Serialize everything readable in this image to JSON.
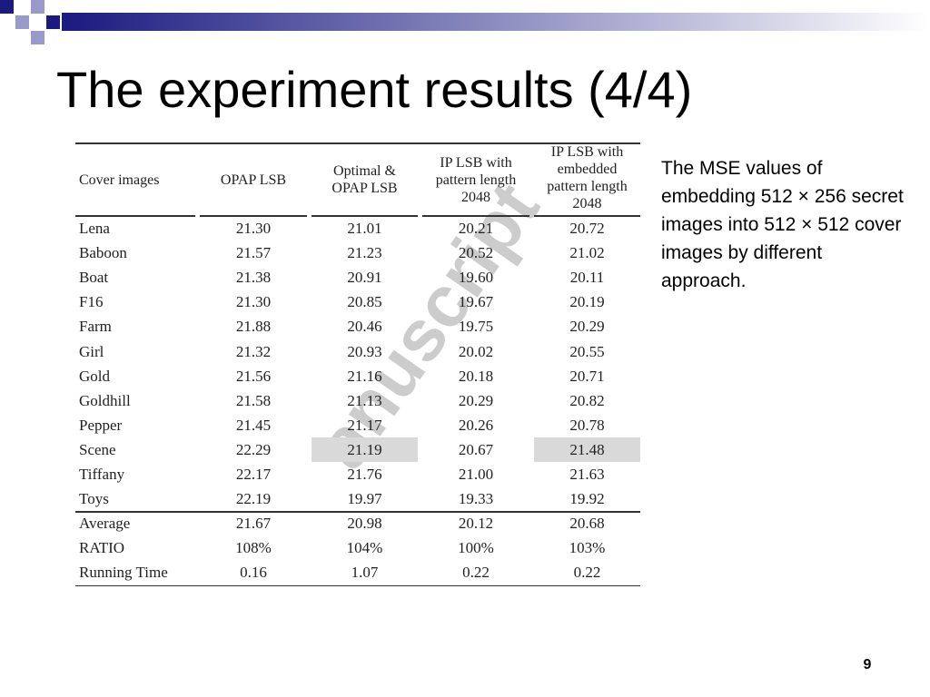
{
  "slide": {
    "title": "The experiment results (4/4)",
    "description": "The MSE values of embedding 512 × 256 secret images into 512 × 512 cover images by different approach.",
    "page_number": "9",
    "watermark": "anuscript"
  },
  "table": {
    "header": [
      [
        "Cover images"
      ],
      [
        "OPAP LSB"
      ],
      [
        "Optimal &",
        "OPAP LSB"
      ],
      [
        "IP LSB with",
        "pattern length",
        "2048"
      ],
      [
        "IP LSB with",
        "embedded",
        "pattern length",
        "2048"
      ]
    ],
    "rows": [
      [
        "Lena",
        "21.30",
        "21.01",
        "20.21",
        "20.72"
      ],
      [
        "Baboon",
        "21.57",
        "21.23",
        "20.52",
        "21.02"
      ],
      [
        "Boat",
        "21.38",
        "20.91",
        "19.60",
        "20.11"
      ],
      [
        "F16",
        "21.30",
        "20.85",
        "19.67",
        "20.19"
      ],
      [
        "Farm",
        "21.88",
        "20.46",
        "19.75",
        "20.29"
      ],
      [
        "Girl",
        "21.32",
        "20.93",
        "20.02",
        "20.55"
      ],
      [
        "Gold",
        "21.56",
        "21.16",
        "20.18",
        "20.71"
      ],
      [
        "Goldhill",
        "21.58",
        "21.13",
        "20.29",
        "20.82"
      ],
      [
        "Pepper",
        "21.45",
        "21.17",
        "20.26",
        "20.78"
      ],
      [
        "Scene",
        "22.29",
        "21.19",
        "20.67",
        "21.48"
      ],
      [
        "Tiffany",
        "22.17",
        "21.76",
        "21.00",
        "21.63"
      ],
      [
        "Toys",
        "22.19",
        "19.97",
        "19.33",
        "19.92"
      ],
      [
        "Average",
        "21.67",
        "20.98",
        "20.12",
        "20.68"
      ],
      [
        "RATIO",
        "108%",
        "104%",
        "100%",
        "103%"
      ],
      [
        "Running Time",
        "0.16",
        "1.07",
        "0.22",
        "0.22"
      ]
    ]
  }
}
